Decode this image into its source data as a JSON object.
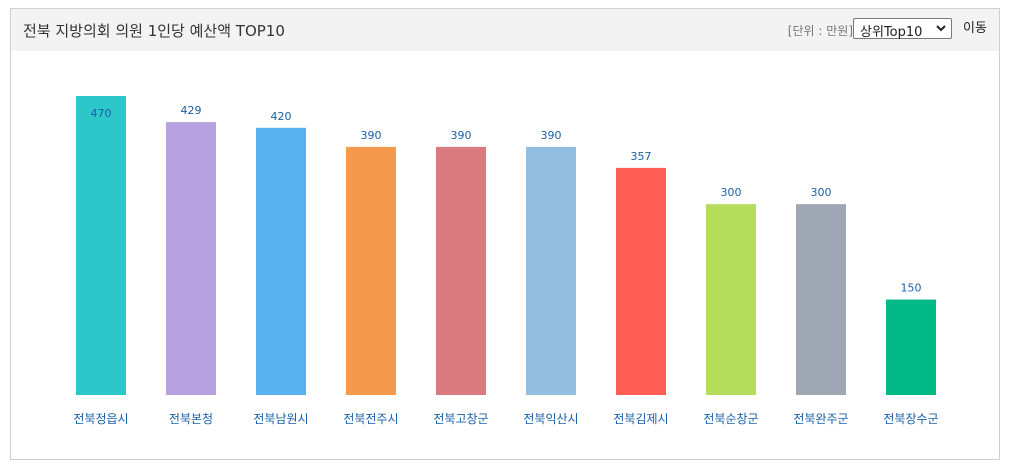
{
  "header": {
    "title": "전북 지방의회 의원 1인당 예산액 TOP10",
    "unit_open": "[",
    "unit_text": "단위 : 만원",
    "unit_close": "]",
    "select_value": "상위Top10",
    "go_label": "이동"
  },
  "colors": {
    "value_label": "#1a5fa8",
    "category_label": "#1a5fa8",
    "bars": [
      "#2ec7c9",
      "#b6a2de",
      "#5ab1ef",
      "#f5994e",
      "#d87a80",
      "#93bedf",
      "#ff5e55",
      "#b5dc5a",
      "#a0a7b4",
      "#00b985"
    ]
  },
  "chart_data": {
    "type": "bar",
    "title": "",
    "xlabel": "",
    "ylabel": "",
    "categories": [
      "전북정읍시",
      "전북본청",
      "전북남원시",
      "전북전주시",
      "전북고창군",
      "전북익산시",
      "전북김제시",
      "전북순창군",
      "전북완주군",
      "전북장수군"
    ],
    "values": [
      470,
      429,
      420,
      390,
      390,
      390,
      357,
      300,
      300,
      150
    ],
    "ylim": [
      0,
      470
    ],
    "grid": false,
    "legend": "none",
    "data_labels": true
  }
}
